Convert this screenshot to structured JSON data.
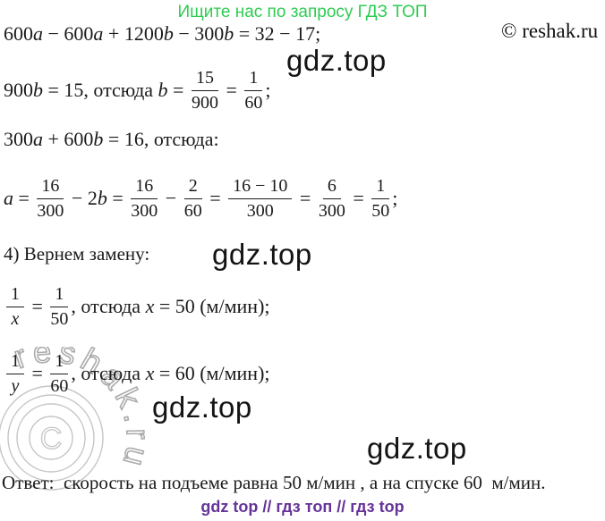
{
  "page": {
    "header_note": "Ищите нас по запросу ГДЗ ТОП",
    "copyright": "© reshak.ru",
    "footer": "gdz top  //  гдз топ  //  гдз top",
    "colors": {
      "header_green": "#2ecc52",
      "footer_purple": "#663399",
      "text_black": "#1a1a1a",
      "watermark_gray": "#aaaaaa"
    }
  },
  "watermarks": {
    "gdz_labels": [
      "gdz.top",
      "gdz.top",
      "gdz.top",
      "gdz.top"
    ],
    "circle_symbol": "C",
    "circle_text": "reshak.ru"
  },
  "equations": {
    "eq1": {
      "tokens": [
        {
          "t": "txt",
          "s": "600"
        },
        {
          "t": "var",
          "s": "a"
        },
        {
          "t": "txt",
          "s": " − 600"
        },
        {
          "t": "var",
          "s": "a"
        },
        {
          "t": "txt",
          "s": " + 1200"
        },
        {
          "t": "var",
          "s": "b"
        },
        {
          "t": "txt",
          "s": " − 300"
        },
        {
          "t": "var",
          "s": "b"
        },
        {
          "t": "txt",
          "s": " = 32 − 17;"
        }
      ]
    },
    "eq2": {
      "tokens": [
        {
          "t": "txt",
          "s": "900"
        },
        {
          "t": "var",
          "s": "b"
        },
        {
          "t": "txt",
          "s": " = 15, отсюда "
        },
        {
          "t": "var",
          "s": "b"
        },
        {
          "t": "txt",
          "s": " = "
        },
        {
          "t": "frac",
          "n": "15",
          "d": "900"
        },
        {
          "t": "txt",
          "s": " = "
        },
        {
          "t": "frac",
          "n": "1",
          "d": "60"
        },
        {
          "t": "txt",
          "s": ";"
        }
      ]
    },
    "eq3": {
      "tokens": [
        {
          "t": "txt",
          "s": "300"
        },
        {
          "t": "var",
          "s": "a"
        },
        {
          "t": "txt",
          "s": " + 600"
        },
        {
          "t": "var",
          "s": "b"
        },
        {
          "t": "txt",
          "s": " = 16, отсюда:"
        }
      ]
    },
    "eq4": {
      "tokens": [
        {
          "t": "var",
          "s": "a"
        },
        {
          "t": "txt",
          "s": " = "
        },
        {
          "t": "frac",
          "n": "16",
          "d": "300"
        },
        {
          "t": "txt",
          "s": " − 2"
        },
        {
          "t": "var",
          "s": "b"
        },
        {
          "t": "txt",
          "s": " = "
        },
        {
          "t": "frac",
          "n": "16",
          "d": "300"
        },
        {
          "t": "txt",
          "s": " − "
        },
        {
          "t": "frac",
          "n": "2",
          "d": "60"
        },
        {
          "t": "txt",
          "s": " = "
        },
        {
          "t": "frac",
          "n": "16 − 10",
          "d": "300"
        },
        {
          "t": "txt",
          "s": " = "
        },
        {
          "t": "frac",
          "n": "6",
          "d": "300"
        },
        {
          "t": "txt",
          "s": " = "
        },
        {
          "t": "frac",
          "n": "1",
          "d": "50"
        },
        {
          "t": "txt",
          "s": ";"
        }
      ]
    },
    "eq5": {
      "tokens": [
        {
          "t": "txt",
          "s": "4) Вернем замену:"
        }
      ]
    },
    "eq6": {
      "tokens": [
        {
          "t": "frac",
          "n": "1",
          "d": "x",
          "dvar": true
        },
        {
          "t": "txt",
          "s": " = "
        },
        {
          "t": "frac",
          "n": "1",
          "d": "50"
        },
        {
          "t": "txt",
          "s": ", отсюда "
        },
        {
          "t": "var",
          "s": "x"
        },
        {
          "t": "txt",
          "s": " = 50 (м/мин);"
        }
      ]
    },
    "eq7": {
      "tokens": [
        {
          "t": "frac",
          "n": "1",
          "d": "y",
          "dvar": true
        },
        {
          "t": "txt",
          "s": " = "
        },
        {
          "t": "frac",
          "n": "1",
          "d": "60"
        },
        {
          "t": "txt",
          "s": ", отсюда "
        },
        {
          "t": "var",
          "s": "x"
        },
        {
          "t": "txt",
          "s": " = 60 (м/мин);"
        }
      ]
    },
    "answer": {
      "tokens": [
        {
          "t": "txt",
          "s": "Ответ:  скорость на подъеме равна 50 м/мин , а на спуске 60  м/мин."
        }
      ]
    }
  }
}
